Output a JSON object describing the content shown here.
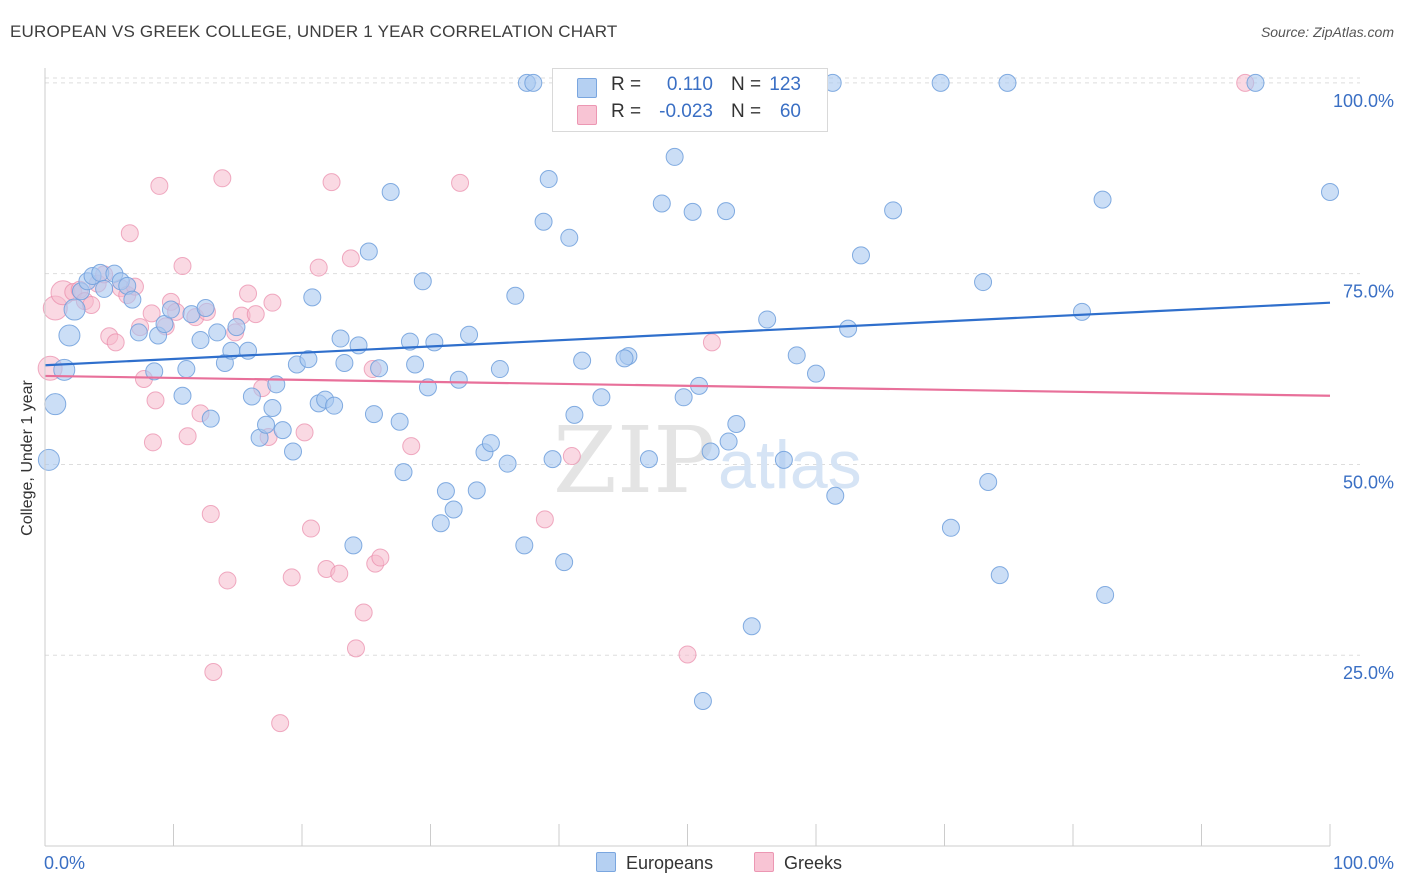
{
  "title": "EUROPEAN VS GREEK COLLEGE, UNDER 1 YEAR CORRELATION CHART",
  "source": "Source: ZipAtlas.com",
  "watermark": {
    "zip": "ZIP",
    "atlas": "atlas"
  },
  "legend": {
    "r_label": "R =",
    "n_label": "N =",
    "europeans": {
      "r": "0.110",
      "n": "123"
    },
    "greeks": {
      "r": "-0.023",
      "n": "60"
    }
  },
  "bottom_legend": {
    "europeans": "Europeans",
    "greeks": "Greeks"
  },
  "colors": {
    "europeans_fill": "#a8c8f0",
    "europeans_stroke": "#6f9fdc",
    "europeans_line": "#2f6fcc",
    "greeks_fill": "#f6b9cc",
    "greeks_stroke": "#e98aaa",
    "greeks_line": "#e8709a",
    "tick_text": "#3a6fc4",
    "grid": "#dddddd"
  },
  "chart_data": {
    "type": "scatter",
    "title": "EUROPEAN VS GREEK COLLEGE, UNDER 1 YEAR CORRELATION CHART",
    "xlabel": "",
    "ylabel": "College, Under 1 year",
    "xlim": [
      0,
      100
    ],
    "ylim": [
      0,
      103
    ],
    "x_tick_labels": [
      "0.0%",
      "100.0%"
    ],
    "y_ticks": [
      25,
      50,
      75,
      100
    ],
    "y_tick_labels": [
      "25.0%",
      "50.0%",
      "75.0%",
      "100.0%"
    ],
    "grid": true,
    "legend_placement": "top-center",
    "series": [
      {
        "name": "Europeans",
        "trend": {
          "x": [
            0,
            100
          ],
          "y": [
            63.0,
            71.2
          ]
        },
        "points": [
          [
            0.3,
            50.6
          ],
          [
            0.8,
            57.9
          ],
          [
            1.5,
            62.4
          ],
          [
            1.9,
            66.9
          ],
          [
            2.3,
            70.3
          ],
          [
            2.8,
            72.7
          ],
          [
            3.3,
            74.0
          ],
          [
            3.7,
            74.7
          ],
          [
            4.3,
            75.1
          ],
          [
            4.6,
            73.0
          ],
          [
            5.4,
            75.0
          ],
          [
            5.9,
            74.0
          ],
          [
            6.4,
            73.4
          ],
          [
            6.8,
            71.6
          ],
          [
            7.3,
            67.3
          ],
          [
            8.5,
            62.2
          ],
          [
            8.8,
            66.9
          ],
          [
            9.3,
            68.4
          ],
          [
            9.8,
            70.3
          ],
          [
            10.7,
            59.0
          ],
          [
            11.0,
            62.5
          ],
          [
            11.4,
            69.7
          ],
          [
            12.1,
            66.3
          ],
          [
            12.5,
            70.5
          ],
          [
            12.9,
            56.0
          ],
          [
            13.4,
            67.3
          ],
          [
            14.0,
            63.3
          ],
          [
            14.5,
            64.9
          ],
          [
            14.9,
            68.0
          ],
          [
            15.8,
            64.9
          ],
          [
            16.1,
            58.9
          ],
          [
            16.7,
            53.5
          ],
          [
            17.2,
            55.2
          ],
          [
            17.7,
            57.4
          ],
          [
            18.0,
            60.5
          ],
          [
            18.5,
            54.5
          ],
          [
            19.3,
            51.7
          ],
          [
            19.6,
            63.1
          ],
          [
            20.5,
            63.8
          ],
          [
            20.8,
            71.9
          ],
          [
            21.3,
            58.0
          ],
          [
            21.8,
            58.5
          ],
          [
            22.5,
            57.7
          ],
          [
            23.0,
            66.5
          ],
          [
            23.3,
            63.3
          ],
          [
            24.0,
            39.4
          ],
          [
            24.4,
            65.6
          ],
          [
            25.2,
            77.9
          ],
          [
            25.6,
            56.6
          ],
          [
            26.0,
            62.6
          ],
          [
            26.9,
            85.7
          ],
          [
            27.6,
            55.6
          ],
          [
            27.9,
            49.0
          ],
          [
            28.4,
            66.1
          ],
          [
            28.8,
            63.1
          ],
          [
            29.4,
            74.0
          ],
          [
            29.8,
            60.1
          ],
          [
            30.3,
            66.0
          ],
          [
            30.8,
            42.3
          ],
          [
            31.2,
            46.5
          ],
          [
            31.8,
            44.1
          ],
          [
            32.2,
            61.1
          ],
          [
            33.0,
            67.0
          ],
          [
            33.6,
            46.6
          ],
          [
            34.2,
            51.6
          ],
          [
            34.7,
            52.8
          ],
          [
            35.4,
            62.5
          ],
          [
            36.0,
            50.1
          ],
          [
            36.6,
            72.1
          ],
          [
            37.3,
            39.4
          ],
          [
            37.5,
            100.0
          ],
          [
            38.0,
            100.0
          ],
          [
            38.8,
            81.8
          ],
          [
            39.2,
            87.4
          ],
          [
            39.5,
            50.7
          ],
          [
            40.4,
            37.2
          ],
          [
            40.8,
            79.7
          ],
          [
            41.2,
            56.5
          ],
          [
            41.8,
            63.6
          ],
          [
            43.3,
            58.8
          ],
          [
            45.4,
            64.2
          ],
          [
            45.1,
            63.9
          ],
          [
            47.0,
            50.7
          ],
          [
            47.3,
            100.0
          ],
          [
            48.0,
            84.2
          ],
          [
            49.0,
            90.3
          ],
          [
            49.7,
            58.8
          ],
          [
            50.4,
            83.1
          ],
          [
            50.9,
            60.3
          ],
          [
            51.2,
            19.0
          ],
          [
            51.8,
            51.7
          ],
          [
            53.0,
            83.2
          ],
          [
            53.2,
            53.0
          ],
          [
            53.8,
            55.3
          ],
          [
            55.0,
            28.8
          ],
          [
            56.2,
            69.0
          ],
          [
            57.5,
            50.6
          ],
          [
            58.5,
            64.3
          ],
          [
            60.0,
            61.9
          ],
          [
            61.3,
            100.0
          ],
          [
            61.5,
            45.9
          ],
          [
            62.5,
            67.8
          ],
          [
            63.5,
            77.4
          ],
          [
            66.0,
            83.3
          ],
          [
            69.7,
            100.0
          ],
          [
            70.5,
            41.7
          ],
          [
            73.0,
            73.9
          ],
          [
            73.4,
            47.7
          ],
          [
            74.9,
            100.0
          ],
          [
            74.3,
            35.5
          ],
          [
            80.7,
            70.0
          ],
          [
            82.3,
            84.7
          ],
          [
            82.5,
            32.9
          ],
          [
            94.2,
            100.0
          ],
          [
            100.0,
            85.7
          ],
          [
            43.8,
            100.0
          ],
          [
            45.5,
            100.0
          ]
        ]
      },
      {
        "name": "Greeks",
        "trend": {
          "x": [
            0,
            100
          ],
          "y": [
            61.6,
            59.0
          ]
        },
        "points": [
          [
            0.4,
            62.6
          ],
          [
            0.8,
            70.5
          ],
          [
            1.4,
            72.5
          ],
          [
            2.2,
            72.6
          ],
          [
            2.7,
            72.9
          ],
          [
            3.1,
            71.4
          ],
          [
            3.6,
            70.9
          ],
          [
            4.1,
            73.7
          ],
          [
            4.6,
            74.9
          ],
          [
            5.0,
            66.8
          ],
          [
            5.5,
            66.0
          ],
          [
            5.9,
            73.1
          ],
          [
            6.4,
            72.2
          ],
          [
            6.6,
            80.3
          ],
          [
            7.0,
            73.3
          ],
          [
            7.4,
            68.0
          ],
          [
            7.7,
            61.2
          ],
          [
            8.3,
            69.8
          ],
          [
            8.4,
            52.9
          ],
          [
            8.6,
            58.4
          ],
          [
            8.9,
            86.5
          ],
          [
            9.4,
            68.1
          ],
          [
            9.8,
            71.3
          ],
          [
            10.2,
            70.0
          ],
          [
            10.7,
            76.0
          ],
          [
            11.1,
            53.7
          ],
          [
            11.7,
            69.3
          ],
          [
            12.1,
            56.7
          ],
          [
            12.6,
            70.0
          ],
          [
            12.9,
            43.5
          ],
          [
            13.1,
            22.8
          ],
          [
            13.8,
            87.5
          ],
          [
            14.2,
            34.8
          ],
          [
            14.8,
            67.3
          ],
          [
            15.3,
            69.5
          ],
          [
            15.8,
            72.4
          ],
          [
            16.4,
            69.7
          ],
          [
            16.9,
            60.0
          ],
          [
            17.4,
            53.6
          ],
          [
            17.7,
            71.2
          ],
          [
            18.3,
            16.1
          ],
          [
            19.2,
            35.2
          ],
          [
            20.2,
            54.2
          ],
          [
            20.7,
            41.6
          ],
          [
            21.3,
            75.8
          ],
          [
            21.9,
            36.3
          ],
          [
            22.3,
            87.0
          ],
          [
            22.9,
            35.7
          ],
          [
            23.8,
            77.0
          ],
          [
            24.2,
            25.9
          ],
          [
            24.8,
            30.6
          ],
          [
            25.5,
            62.5
          ],
          [
            25.7,
            37.0
          ],
          [
            26.1,
            37.8
          ],
          [
            28.5,
            52.4
          ],
          [
            32.3,
            86.9
          ],
          [
            38.9,
            42.8
          ],
          [
            41.0,
            51.1
          ],
          [
            50.0,
            25.1
          ],
          [
            51.9,
            66.0
          ],
          [
            93.4,
            100.0
          ]
        ]
      }
    ]
  }
}
